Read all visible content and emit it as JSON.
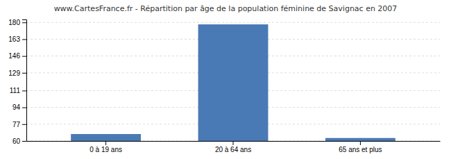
{
  "chart_data": {
    "type": "bar",
    "title": "www.CartesFrance.fr - Répartition par âge de la population féminine de Savignac en 2007",
    "categories": [
      "0 à 19 ans",
      "20 à 64 ans",
      "65 ans et plus"
    ],
    "values": [
      67,
      178,
      63
    ],
    "color": "#4a7ab5",
    "ylim": [
      60,
      183
    ],
    "yticks": [
      60,
      77,
      94,
      111,
      129,
      146,
      163,
      180
    ],
    "grid": true
  }
}
